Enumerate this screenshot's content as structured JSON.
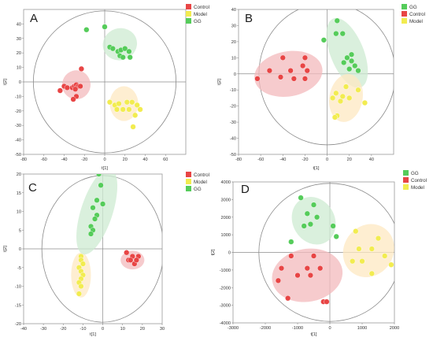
{
  "chart_data": [
    {
      "type": "scatter",
      "panel": "A",
      "xlabel": "t[1]",
      "ylabel": "t[2]",
      "xlim": [
        -80,
        80
      ],
      "ylim": [
        -50,
        50
      ],
      "xticks": [
        -80,
        -60,
        -40,
        -20,
        0,
        20,
        40,
        60
      ],
      "yticks": [
        -50,
        -40,
        -30,
        -20,
        -10,
        0,
        10,
        20,
        30,
        40
      ],
      "legend_position": "top-right",
      "legend": [
        "Control",
        "Model",
        "GG"
      ],
      "series": [
        {
          "name": "Control",
          "color": "#e84545",
          "fill": "#f3b9bc",
          "ellipse": {
            "cx": -28,
            "cy": -2,
            "rx": 14,
            "ry": 10,
            "angle": 8
          },
          "points": [
            [
              -23,
              9
            ],
            [
              -40,
              -3
            ],
            [
              -37,
              -4
            ],
            [
              -32,
              -4
            ],
            [
              -30,
              -3
            ],
            [
              -28,
              -2
            ],
            [
              -26,
              -3
            ],
            [
              -24,
              -3
            ],
            [
              -29,
              -5
            ],
            [
              -44,
              -6
            ],
            [
              -28,
              -10
            ],
            [
              -31,
              -12
            ]
          ]
        },
        {
          "name": "Model",
          "color": "#f2ec50",
          "fill": "#fde8c2",
          "ellipse": {
            "cx": 19,
            "cy": -15,
            "rx": 14,
            "ry": 12,
            "angle": 0
          },
          "points": [
            [
              5,
              -14
            ],
            [
              10,
              -16
            ],
            [
              14,
              -15
            ],
            [
              22,
              -14
            ],
            [
              27,
              -14
            ],
            [
              32,
              -16
            ],
            [
              35,
              -19
            ],
            [
              12,
              -19
            ],
            [
              18,
              -19
            ],
            [
              24,
              -19
            ],
            [
              30,
              -23
            ],
            [
              28,
              -31
            ]
          ]
        },
        {
          "name": "GG",
          "color": "#55cc5a",
          "fill": "#cdebd2",
          "ellipse": {
            "cx": 15,
            "cy": 26,
            "rx": 17,
            "ry": 11,
            "angle": -18
          },
          "points": [
            [
              -18,
              36
            ],
            [
              0,
              38
            ],
            [
              5,
              24
            ],
            [
              8,
              23
            ],
            [
              13,
              21
            ],
            [
              16,
              22
            ],
            [
              20,
              23
            ],
            [
              24,
              21
            ],
            [
              25,
              17
            ],
            [
              15,
              18
            ],
            [
              18,
              17
            ]
          ]
        }
      ]
    },
    {
      "type": "scatter",
      "panel": "B",
      "xlabel": "t[1]",
      "ylabel": "t[2]",
      "xlim": [
        -80,
        60
      ],
      "ylim": [
        -50,
        40
      ],
      "xticks": [
        -80,
        -60,
        -40,
        -20,
        0,
        20,
        40
      ],
      "yticks": [
        -50,
        -40,
        -30,
        -20,
        -10,
        0,
        10,
        20,
        30,
        40
      ],
      "legend_position": "top-right",
      "legend": [
        "GG",
        "Control",
        "Model"
      ],
      "series": [
        {
          "name": "GG",
          "color": "#55cc5a",
          "fill": "#cdebd2",
          "ellipse": {
            "cx": 18,
            "cy": 13,
            "rx": 15,
            "ry": 23,
            "angle": -22
          },
          "points": [
            [
              9,
              33
            ],
            [
              -3,
              21
            ],
            [
              8,
              25
            ],
            [
              14,
              25
            ],
            [
              18,
              10
            ],
            [
              22,
              8
            ],
            [
              25,
              5
            ],
            [
              28,
              2
            ],
            [
              15,
              7
            ],
            [
              22,
              12
            ],
            [
              20,
              3
            ]
          ]
        },
        {
          "name": "Control",
          "color": "#e84545",
          "fill": "#f3b9bc",
          "ellipse": {
            "cx": -35,
            "cy": 0,
            "rx": 31,
            "ry": 14,
            "angle": -10
          },
          "points": [
            [
              -40,
              10
            ],
            [
              -20,
              10
            ],
            [
              -22,
              5
            ],
            [
              -52,
              2
            ],
            [
              -33,
              2
            ],
            [
              -18,
              2
            ],
            [
              -42,
              -2
            ],
            [
              -30,
              -3
            ],
            [
              -63,
              -3
            ],
            [
              -20,
              -3
            ]
          ]
        },
        {
          "name": "Model",
          "color": "#f2ec50",
          "fill": "#fde8c2",
          "ellipse": {
            "cx": 17,
            "cy": -15,
            "rx": 15,
            "ry": 15,
            "angle": 10
          },
          "points": [
            [
              17,
              -8
            ],
            [
              28,
              -10
            ],
            [
              8,
              -12
            ],
            [
              14,
              -14
            ],
            [
              20,
              -15
            ],
            [
              34,
              -18
            ],
            [
              5,
              -15
            ],
            [
              12,
              -17
            ],
            [
              9,
              -26
            ],
            [
              7,
              -27
            ]
          ]
        }
      ]
    },
    {
      "type": "scatter",
      "panel": "C",
      "xlabel": "t[1]",
      "ylabel": "t[2]",
      "xlim": [
        -40,
        30
      ],
      "ylim": [
        -20,
        20
      ],
      "xticks": [
        -40,
        -30,
        -20,
        -10,
        0,
        10,
        20,
        30
      ],
      "yticks": [
        -20,
        -15,
        -10,
        -5,
        0,
        5,
        10,
        15,
        20
      ],
      "legend_position": "top-right",
      "legend": [
        "Control",
        "Model",
        "GG"
      ],
      "series": [
        {
          "name": "Control",
          "color": "#e84545",
          "fill": "#f3b9bc",
          "ellipse": {
            "cx": 15,
            "cy": -3,
            "rx": 6,
            "ry": 2.5,
            "angle": 0
          },
          "points": [
            [
              12,
              -1
            ],
            [
              15,
              -2
            ],
            [
              18,
              -2
            ],
            [
              13,
              -3
            ],
            [
              14,
              -3
            ],
            [
              16,
              -4
            ],
            [
              17,
              -3
            ]
          ]
        },
        {
          "name": "Model",
          "color": "#f2ec50",
          "fill": "#fde8c2",
          "ellipse": {
            "cx": -11,
            "cy": -7,
            "rx": 5,
            "ry": 6,
            "angle": 0
          },
          "points": [
            [
              -11,
              -2
            ],
            [
              -11,
              -3
            ],
            [
              -10,
              -4
            ],
            [
              -12,
              -5
            ],
            [
              -11,
              -6
            ],
            [
              -10,
              -7
            ],
            [
              -11,
              -8
            ],
            [
              -12,
              -9
            ],
            [
              -11,
              -10
            ],
            [
              -12,
              -12
            ]
          ]
        },
        {
          "name": "GG",
          "color": "#55cc5a",
          "fill": "#cdebd2",
          "ellipse": {
            "cx": -3,
            "cy": 10,
            "rx": 8,
            "ry": 12,
            "angle": 18
          },
          "points": [
            [
              5,
              21
            ],
            [
              -2,
              20
            ],
            [
              -1,
              17
            ],
            [
              -3,
              13
            ],
            [
              0,
              12
            ],
            [
              -5,
              11
            ],
            [
              -3,
              9
            ],
            [
              -4,
              8
            ],
            [
              -6,
              6
            ],
            [
              -5,
              5
            ],
            [
              -6,
              4
            ]
          ]
        }
      ]
    },
    {
      "type": "scatter",
      "panel": "D",
      "xlabel": "t[1]",
      "ylabel": "t[2]",
      "xlim": [
        -3000,
        2000
      ],
      "ylim": [
        -4000,
        4000
      ],
      "xticks": [
        -3000,
        -2000,
        -1000,
        0,
        1000,
        2000
      ],
      "yticks": [
        -4000,
        -3000,
        -2000,
        -1000,
        0,
        1000,
        2000,
        3000,
        4000
      ],
      "legend_position": "top-right",
      "legend": [
        "GG",
        "Control",
        "Model"
      ],
      "series": [
        {
          "name": "GG",
          "color": "#55cc5a",
          "fill": "#cdebd2",
          "ellipse": {
            "cx": -500,
            "cy": 1800,
            "rx": 650,
            "ry": 1400,
            "angle": -30
          },
          "points": [
            [
              -900,
              3100
            ],
            [
              -500,
              2700
            ],
            [
              -700,
              2200
            ],
            [
              -400,
              2000
            ],
            [
              -600,
              1600
            ],
            [
              -800,
              1500
            ],
            [
              100,
              1500
            ],
            [
              200,
              900
            ],
            [
              -1200,
              600
            ]
          ]
        },
        {
          "name": "Control",
          "color": "#e84545",
          "fill": "#f3b9bc",
          "ellipse": {
            "cx": -700,
            "cy": -1300,
            "rx": 1100,
            "ry": 1500,
            "angle": -10
          },
          "points": [
            [
              -1200,
              -200
            ],
            [
              -500,
              -200
            ],
            [
              -1500,
              -900
            ],
            [
              -700,
              -900
            ],
            [
              -300,
              -900
            ],
            [
              -1000,
              -1300
            ],
            [
              -600,
              -1300
            ],
            [
              -1600,
              -1600
            ],
            [
              -1300,
              -2600
            ],
            [
              -200,
              -2800
            ],
            [
              -100,
              -2800
            ]
          ]
        },
        {
          "name": "Model",
          "color": "#f2ec50",
          "fill": "#fde8c2",
          "ellipse": {
            "cx": 1200,
            "cy": 100,
            "rx": 850,
            "ry": 1400,
            "angle": -55
          },
          "points": [
            [
              800,
              1200
            ],
            [
              1500,
              800
            ],
            [
              900,
              200
            ],
            [
              1300,
              200
            ],
            [
              1700,
              -200
            ],
            [
              700,
              -500
            ],
            [
              1000,
              -500
            ],
            [
              1900,
              -700
            ],
            [
              2100,
              -700
            ],
            [
              1300,
              -1200
            ]
          ]
        }
      ]
    }
  ]
}
